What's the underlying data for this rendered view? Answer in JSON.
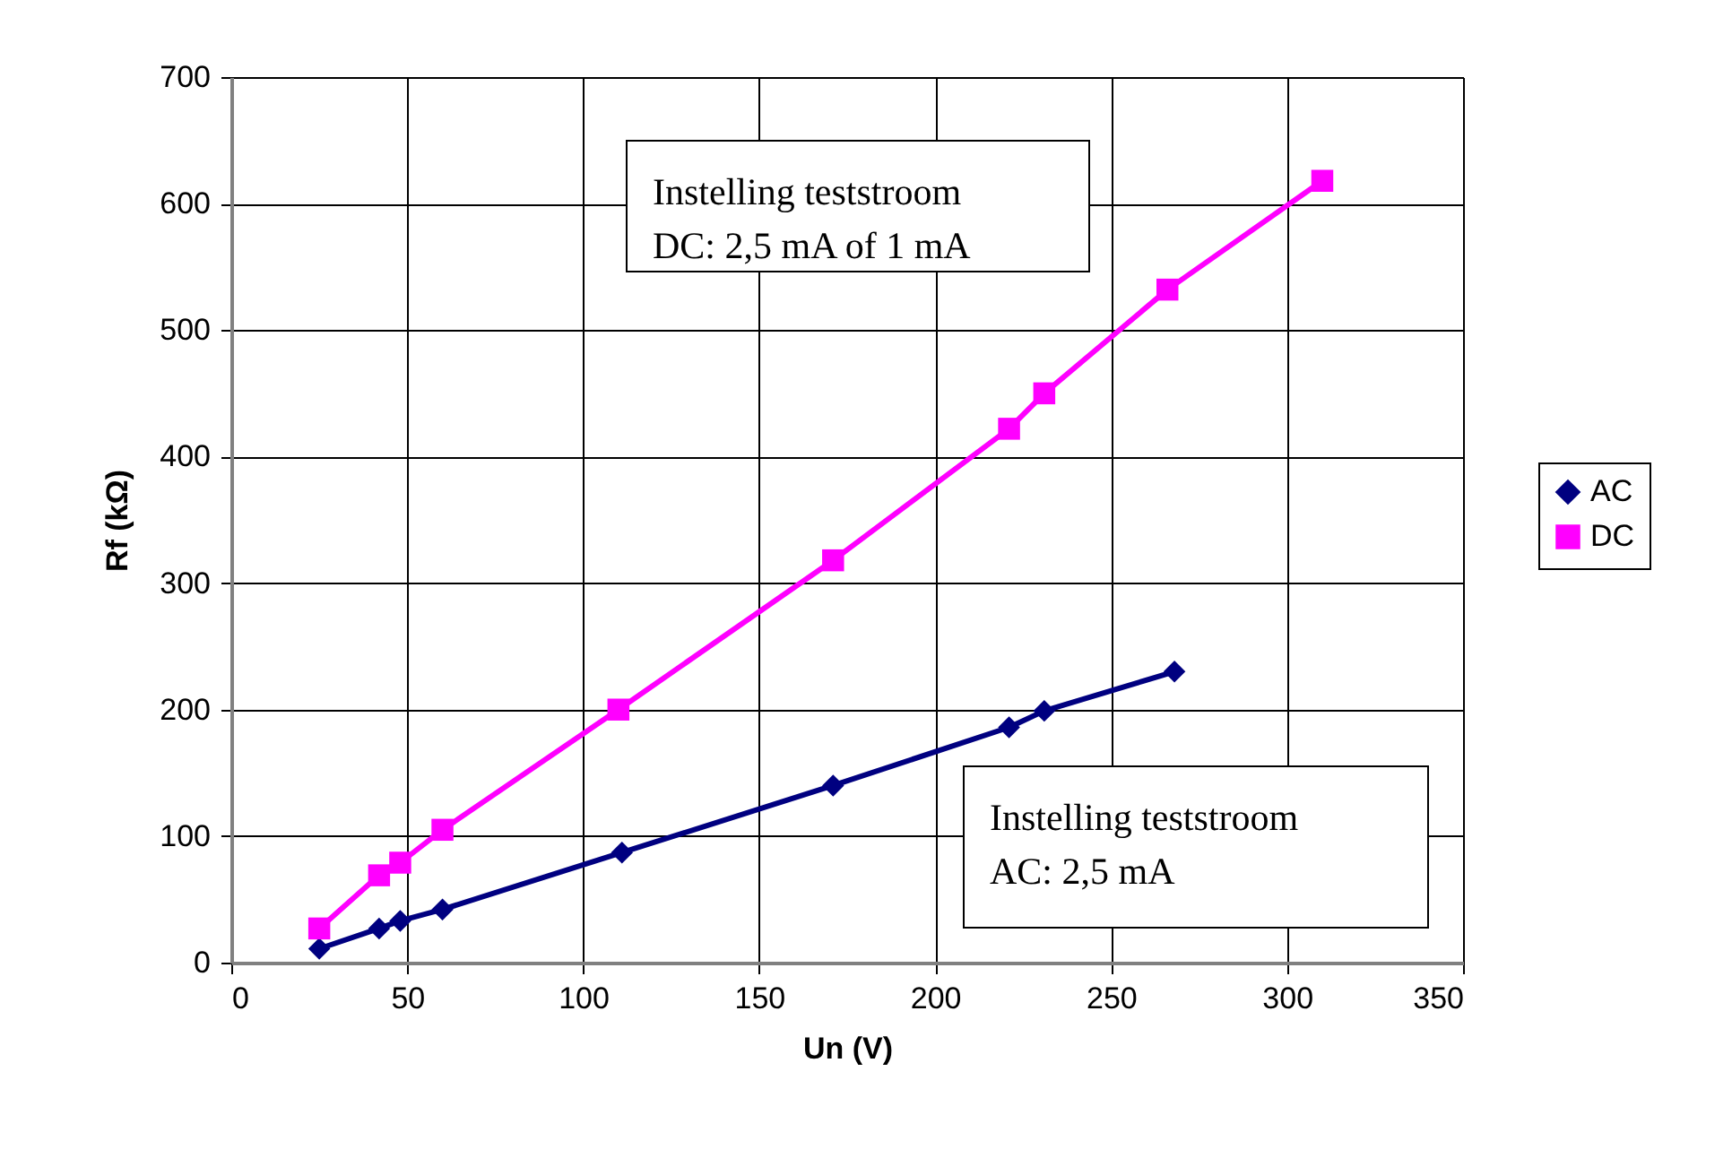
{
  "chart_data": {
    "type": "line",
    "xlabel": "Un   (V)",
    "ylabel": "Rf (kΩ)",
    "xlim": [
      0,
      350
    ],
    "xticks": [
      0,
      50,
      100,
      150,
      200,
      250,
      300,
      350
    ],
    "ylim": [
      0,
      700
    ],
    "yticks": [
      0,
      100,
      200,
      300,
      400,
      500,
      600,
      700
    ],
    "grid": true,
    "legend": "right",
    "annotations": [
      "Instelling teststroom\nDC: 2,5 mA of 1 mA",
      "Instelling teststroom\nAC: 2,5 mA"
    ],
    "series": [
      {
        "name": "AC",
        "color": "#000080",
        "marker": "diamond",
        "x": [
          25,
          42,
          48,
          60,
          111,
          171,
          221,
          231,
          268
        ],
        "values": [
          11,
          27,
          33,
          42,
          87,
          140,
          186,
          199,
          230
        ]
      },
      {
        "name": "DC",
        "color": "#ff00ff",
        "marker": "square",
        "x": [
          25,
          42,
          48,
          60,
          110,
          171,
          221,
          231,
          266,
          310
        ],
        "values": [
          27,
          69,
          79,
          105,
          200,
          318,
          422,
          450,
          532,
          618
        ]
      }
    ]
  }
}
